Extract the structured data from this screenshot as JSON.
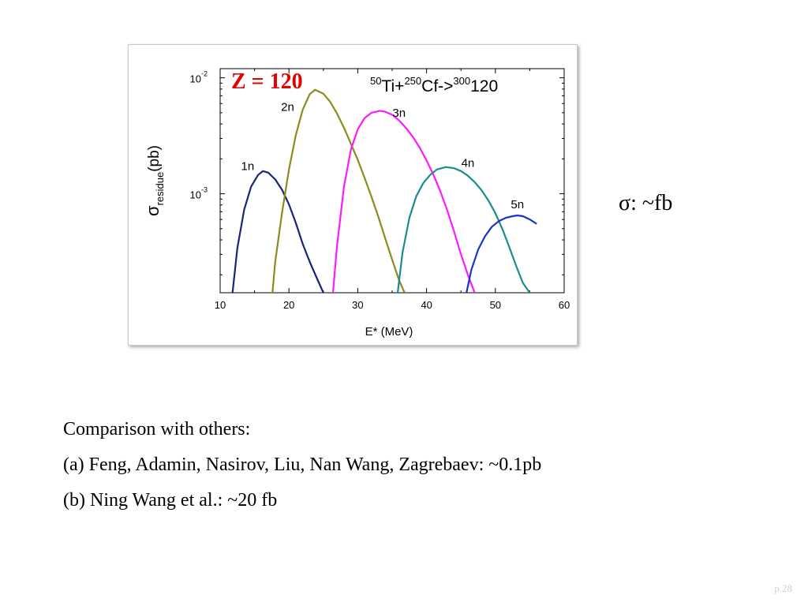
{
  "chart_data": {
    "type": "line",
    "xlabel": "E* (MeV)",
    "ylabel": "σ",
    "ylabel_sub": "residue",
    "ylabel_unit": "(pb)",
    "xlim": [
      10,
      60
    ],
    "ylim": [
      0.00014,
      0.012
    ],
    "y_scale": "log",
    "grid": false,
    "xticks": [
      10,
      20,
      30,
      40,
      50,
      60
    ],
    "xtick_labels": [
      "10",
      "20",
      "30",
      "40",
      "50",
      "60"
    ],
    "yticks": [
      0.001,
      0.01
    ],
    "ytick_labels": [
      {
        "base": "10",
        "exp": "-3"
      },
      {
        "base": "10",
        "exp": "-2"
      }
    ],
    "annotations": {
      "z_label": "Z = 120",
      "reaction": [
        {
          "sup": "50",
          "text": "Ti+"
        },
        {
          "sup": "250",
          "text": "Cf->"
        },
        {
          "sup": "300",
          "text": "120"
        }
      ]
    },
    "series": [
      {
        "name": "1n",
        "color": "#1a237e",
        "label_at": [
          14.0,
          0.0016
        ],
        "x": [
          11.8,
          12.5,
          13.5,
          14.5,
          15.5,
          16.2,
          17.0,
          18.0,
          19.0,
          20.0,
          21.0,
          22.0,
          23.0,
          24.0,
          25.0
        ],
        "y": [
          0.00014,
          0.00034,
          0.00073,
          0.00115,
          0.00145,
          0.00157,
          0.00152,
          0.00133,
          0.00108,
          0.00081,
          0.00056,
          0.00037,
          0.00026,
          0.00019,
          0.00014
        ]
      },
      {
        "name": "2n",
        "color": "#8b8b1e",
        "label_at": [
          19.8,
          0.0052
        ],
        "x": [
          17.6,
          18.0,
          19.0,
          20.0,
          21.0,
          22.0,
          23.0,
          23.8,
          25.0,
          26.0,
          27.0,
          28.0,
          29.0,
          30.0,
          31.0,
          32.0,
          33.0,
          34.0,
          35.0,
          36.0,
          36.8
        ],
        "y": [
          0.00014,
          0.00026,
          0.00069,
          0.00162,
          0.0032,
          0.0053,
          0.0072,
          0.0079,
          0.0073,
          0.0062,
          0.0049,
          0.0037,
          0.0027,
          0.00196,
          0.00137,
          0.00094,
          0.00063,
          0.00041,
          0.00027,
          0.00018,
          0.00014
        ]
      },
      {
        "name": "3n",
        "color": "#ff19ff",
        "label_at": [
          36.0,
          0.0046
        ],
        "x": [
          26.4,
          27.0,
          28.0,
          29.0,
          30.0,
          31.0,
          32.0,
          33.2,
          34.0,
          35.0,
          36.0,
          37.0,
          38.0,
          39.0,
          40.0,
          41.0,
          42.0,
          43.0,
          44.0,
          45.0,
          46.0,
          47.0
        ],
        "y": [
          0.00014,
          0.00036,
          0.00116,
          0.0024,
          0.0036,
          0.0045,
          0.005,
          0.0052,
          0.0051,
          0.0048,
          0.0043,
          0.0037,
          0.0031,
          0.0025,
          0.00194,
          0.00146,
          0.00105,
          0.00072,
          0.00047,
          0.0003,
          0.0002,
          0.00014
        ]
      },
      {
        "name": "4n",
        "color": "#1a8c8c",
        "label_at": [
          46.0,
          0.0017
        ],
        "x": [
          35.8,
          36.5,
          37.5,
          38.5,
          39.5,
          40.5,
          41.5,
          42.8,
          44.0,
          45.0,
          46.0,
          47.0,
          48.0,
          49.0,
          50.0,
          51.0,
          52.0,
          53.0,
          54.0,
          55.0
        ],
        "y": [
          0.00014,
          0.00031,
          0.00062,
          0.00095,
          0.00123,
          0.00145,
          0.00162,
          0.0017,
          0.00166,
          0.00157,
          0.00143,
          0.00126,
          0.00107,
          0.00087,
          0.00068,
          0.0005,
          0.00035,
          0.00024,
          0.00017,
          0.00014
        ]
      },
      {
        "name": "5n",
        "color": "#1a33cc",
        "label_at": [
          53.2,
          0.00075
        ],
        "x": [
          45.8,
          46.5,
          47.5,
          48.5,
          49.5,
          50.5,
          51.5,
          52.5,
          53.2,
          54.0,
          55.0,
          56.0
        ],
        "y": [
          0.00014,
          0.00022,
          0.00033,
          0.00043,
          0.00052,
          0.00058,
          0.00062,
          0.00064,
          0.00065,
          0.00064,
          0.0006,
          0.00055
        ]
      }
    ]
  },
  "side_note": "σ: ~fb",
  "text_lines": [
    "Comparison with others:",
    "(a) Feng, Adamin, Nasirov, Liu, Nan Wang, Zagrebaev: ~0.1pb",
    "(b) Ning Wang et al.: ~20 fb"
  ],
  "page_number": "p.28"
}
